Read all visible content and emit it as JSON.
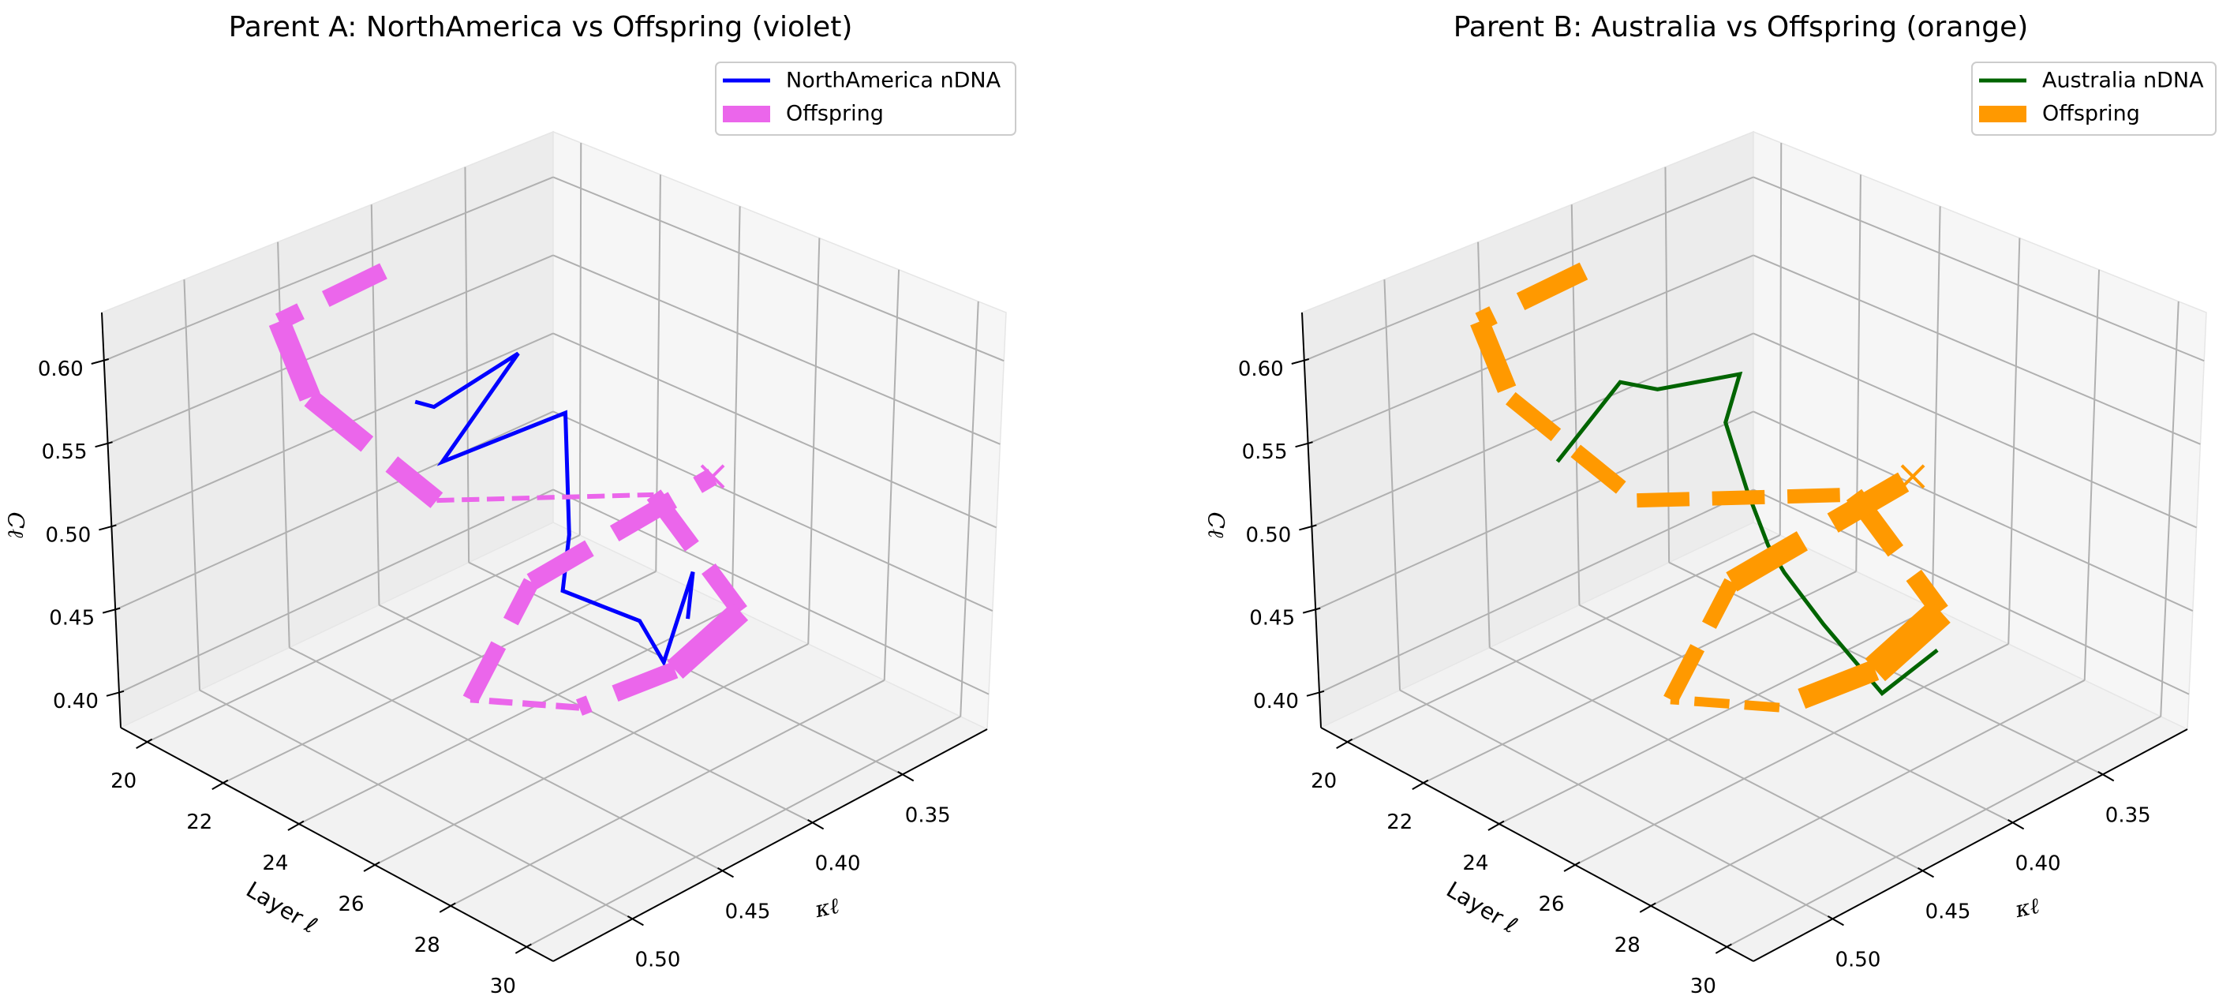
{
  "chart_data": [
    {
      "type": "line3d",
      "title": "Parent A: NorthAmerica  vs Offspring (violet)",
      "xlabel": "Layer ℓ",
      "ylabel": "κℓ",
      "zlabel": "Cℓ",
      "xlim": [
        19.3,
        30.7
      ],
      "ylim": [
        0.303,
        0.544
      ],
      "zlim": [
        0.379,
        0.629
      ],
      "xticks": [
        "20",
        "22",
        "24",
        "26",
        "28",
        "30"
      ],
      "yticks": [
        "0.35",
        "0.40",
        "0.45",
        "0.50"
      ],
      "zticks": [
        "0.40",
        "0.45",
        "0.50",
        "0.55",
        "0.60"
      ],
      "grid": true,
      "legend": {
        "position": "top-right",
        "entries": [
          "NorthAmerica nDNA",
          "Offspring"
        ]
      },
      "series": [
        {
          "name": "NorthAmerica nDNA",
          "color": "#0000ff",
          "style": "solid",
          "layer": [
            20,
            21,
            22,
            23,
            24,
            25,
            26,
            27,
            28,
            29,
            30
          ],
          "kappa": [
            0.39,
            0.4,
            0.373,
            0.437,
            0.389,
            0.41,
            0.435,
            0.414,
            0.422,
            0.424,
            0.448
          ],
          "C": [
            0.495,
            0.51,
            0.539,
            0.523,
            0.537,
            0.488,
            0.481,
            0.463,
            0.455,
            0.523,
            0.521
          ]
        },
        {
          "name": "Offspring",
          "color": "#eb66eb",
          "style": "dashed",
          "end_marker": "x",
          "layer": [
            20,
            21,
            22,
            23,
            24,
            25,
            26,
            27,
            28,
            29,
            30
          ],
          "kappa": [
            0.404,
            0.482,
            0.487,
            0.441,
            0.343,
            0.319,
            0.376,
            0.449,
            0.528,
            0.512,
            0.431
          ],
          "C": [
            0.582,
            0.609,
            0.578,
            0.502,
            0.461,
            0.389,
            0.399,
            0.431,
            0.494,
            0.568,
            0.597
          ],
          "segment_weight": [
            2.2,
            2.8,
            2.5,
            0.6,
            2.2,
            3.0,
            2.2,
            0.8,
            2.1,
            2.3
          ]
        }
      ]
    },
    {
      "type": "line3d",
      "title": "Parent B: Australia  vs Offspring (orange)",
      "xlabel": "Layer ℓ",
      "ylabel": "κℓ",
      "zlabel": "Cℓ",
      "xlim": [
        19.3,
        30.7
      ],
      "ylim": [
        0.303,
        0.544
      ],
      "zlim": [
        0.379,
        0.629
      ],
      "xticks": [
        "20",
        "22",
        "24",
        "26",
        "28",
        "30"
      ],
      "yticks": [
        "0.35",
        "0.40",
        "0.45",
        "0.50"
      ],
      "zticks": [
        "0.40",
        "0.45",
        "0.50",
        "0.55",
        "0.60"
      ],
      "grid": true,
      "legend": {
        "position": "top-right",
        "entries": [
          "Australia nDNA",
          "Offspring"
        ]
      },
      "series": [
        {
          "name": "Australia nDNA",
          "color": "#006400",
          "style": "solid",
          "layer": [
            20,
            21,
            22,
            23,
            24,
            25,
            26,
            27,
            28,
            29,
            30
          ],
          "kappa": [
            0.423,
            0.407,
            0.407,
            0.382,
            0.411,
            0.421,
            0.431,
            0.443,
            0.443,
            0.433,
            0.422
          ],
          "C": [
            0.478,
            0.529,
            0.537,
            0.544,
            0.544,
            0.521,
            0.506,
            0.509,
            0.49,
            0.455,
            0.487
          ]
        },
        {
          "name": "Offspring",
          "color": "#ff9900",
          "style": "dashed",
          "end_marker": "x",
          "layer": [
            20,
            21,
            22,
            23,
            24,
            25,
            26,
            27,
            28,
            29,
            30
          ],
          "kappa": [
            0.404,
            0.482,
            0.487,
            0.441,
            0.343,
            0.319,
            0.376,
            0.449,
            0.528,
            0.512,
            0.431
          ],
          "C": [
            0.582,
            0.609,
            0.578,
            0.502,
            0.461,
            0.389,
            0.399,
            0.431,
            0.494,
            0.568,
            0.597
          ],
          "segment_weight": [
            2.4,
            2.5,
            2.0,
            1.8,
            2.4,
            3.8,
            2.7,
            1.2,
            2.0,
            2.8
          ]
        }
      ]
    }
  ]
}
